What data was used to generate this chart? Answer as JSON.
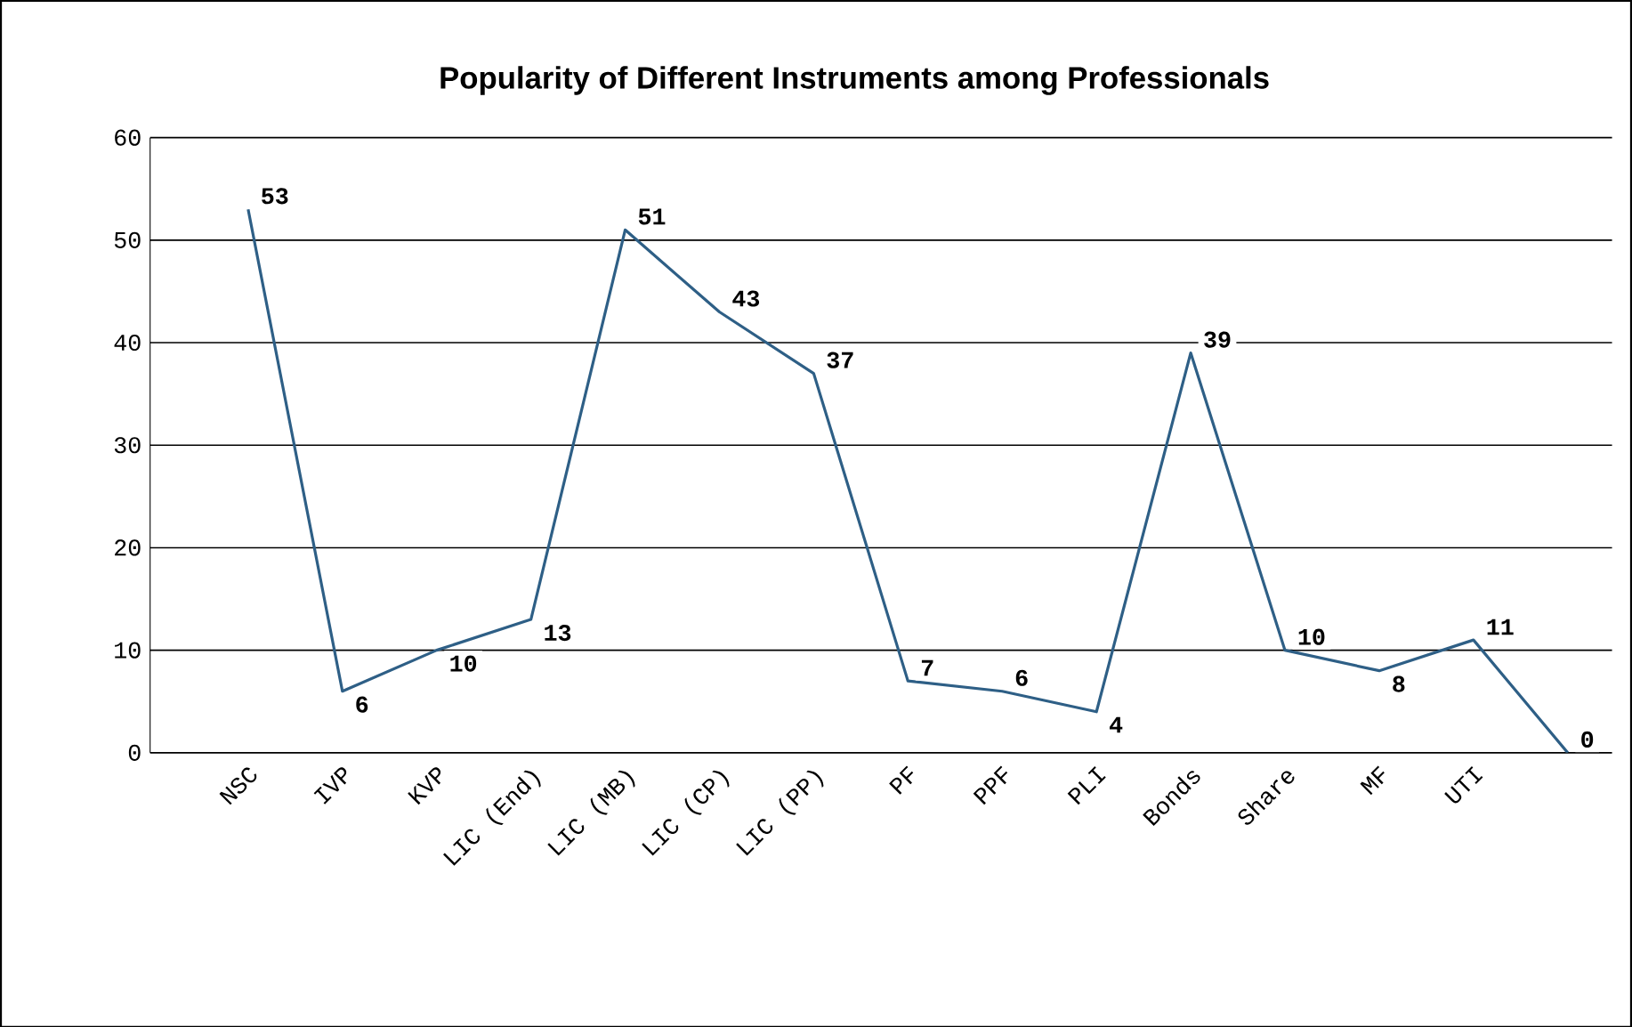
{
  "chart_data": {
    "type": "line",
    "title": "Popularity of Different Instruments among Professionals",
    "categories": [
      "NSC",
      "IVP",
      "KVP",
      "LIC (End)",
      "LIC (MB)",
      "LIC (CP)",
      "LIC (PP)",
      "PF",
      "PPF",
      "PLI",
      "Bonds",
      "Share",
      "MF",
      "UTI",
      null
    ],
    "values": [
      53,
      6,
      10,
      13,
      51,
      43,
      37,
      7,
      6,
      4,
      39,
      10,
      8,
      11,
      0
    ],
    "color": "#2e5f86",
    "ylim": [
      0,
      60
    ],
    "yticks": [
      0,
      10,
      20,
      30,
      40,
      50,
      60
    ],
    "grid": "y",
    "data_labels": true
  }
}
